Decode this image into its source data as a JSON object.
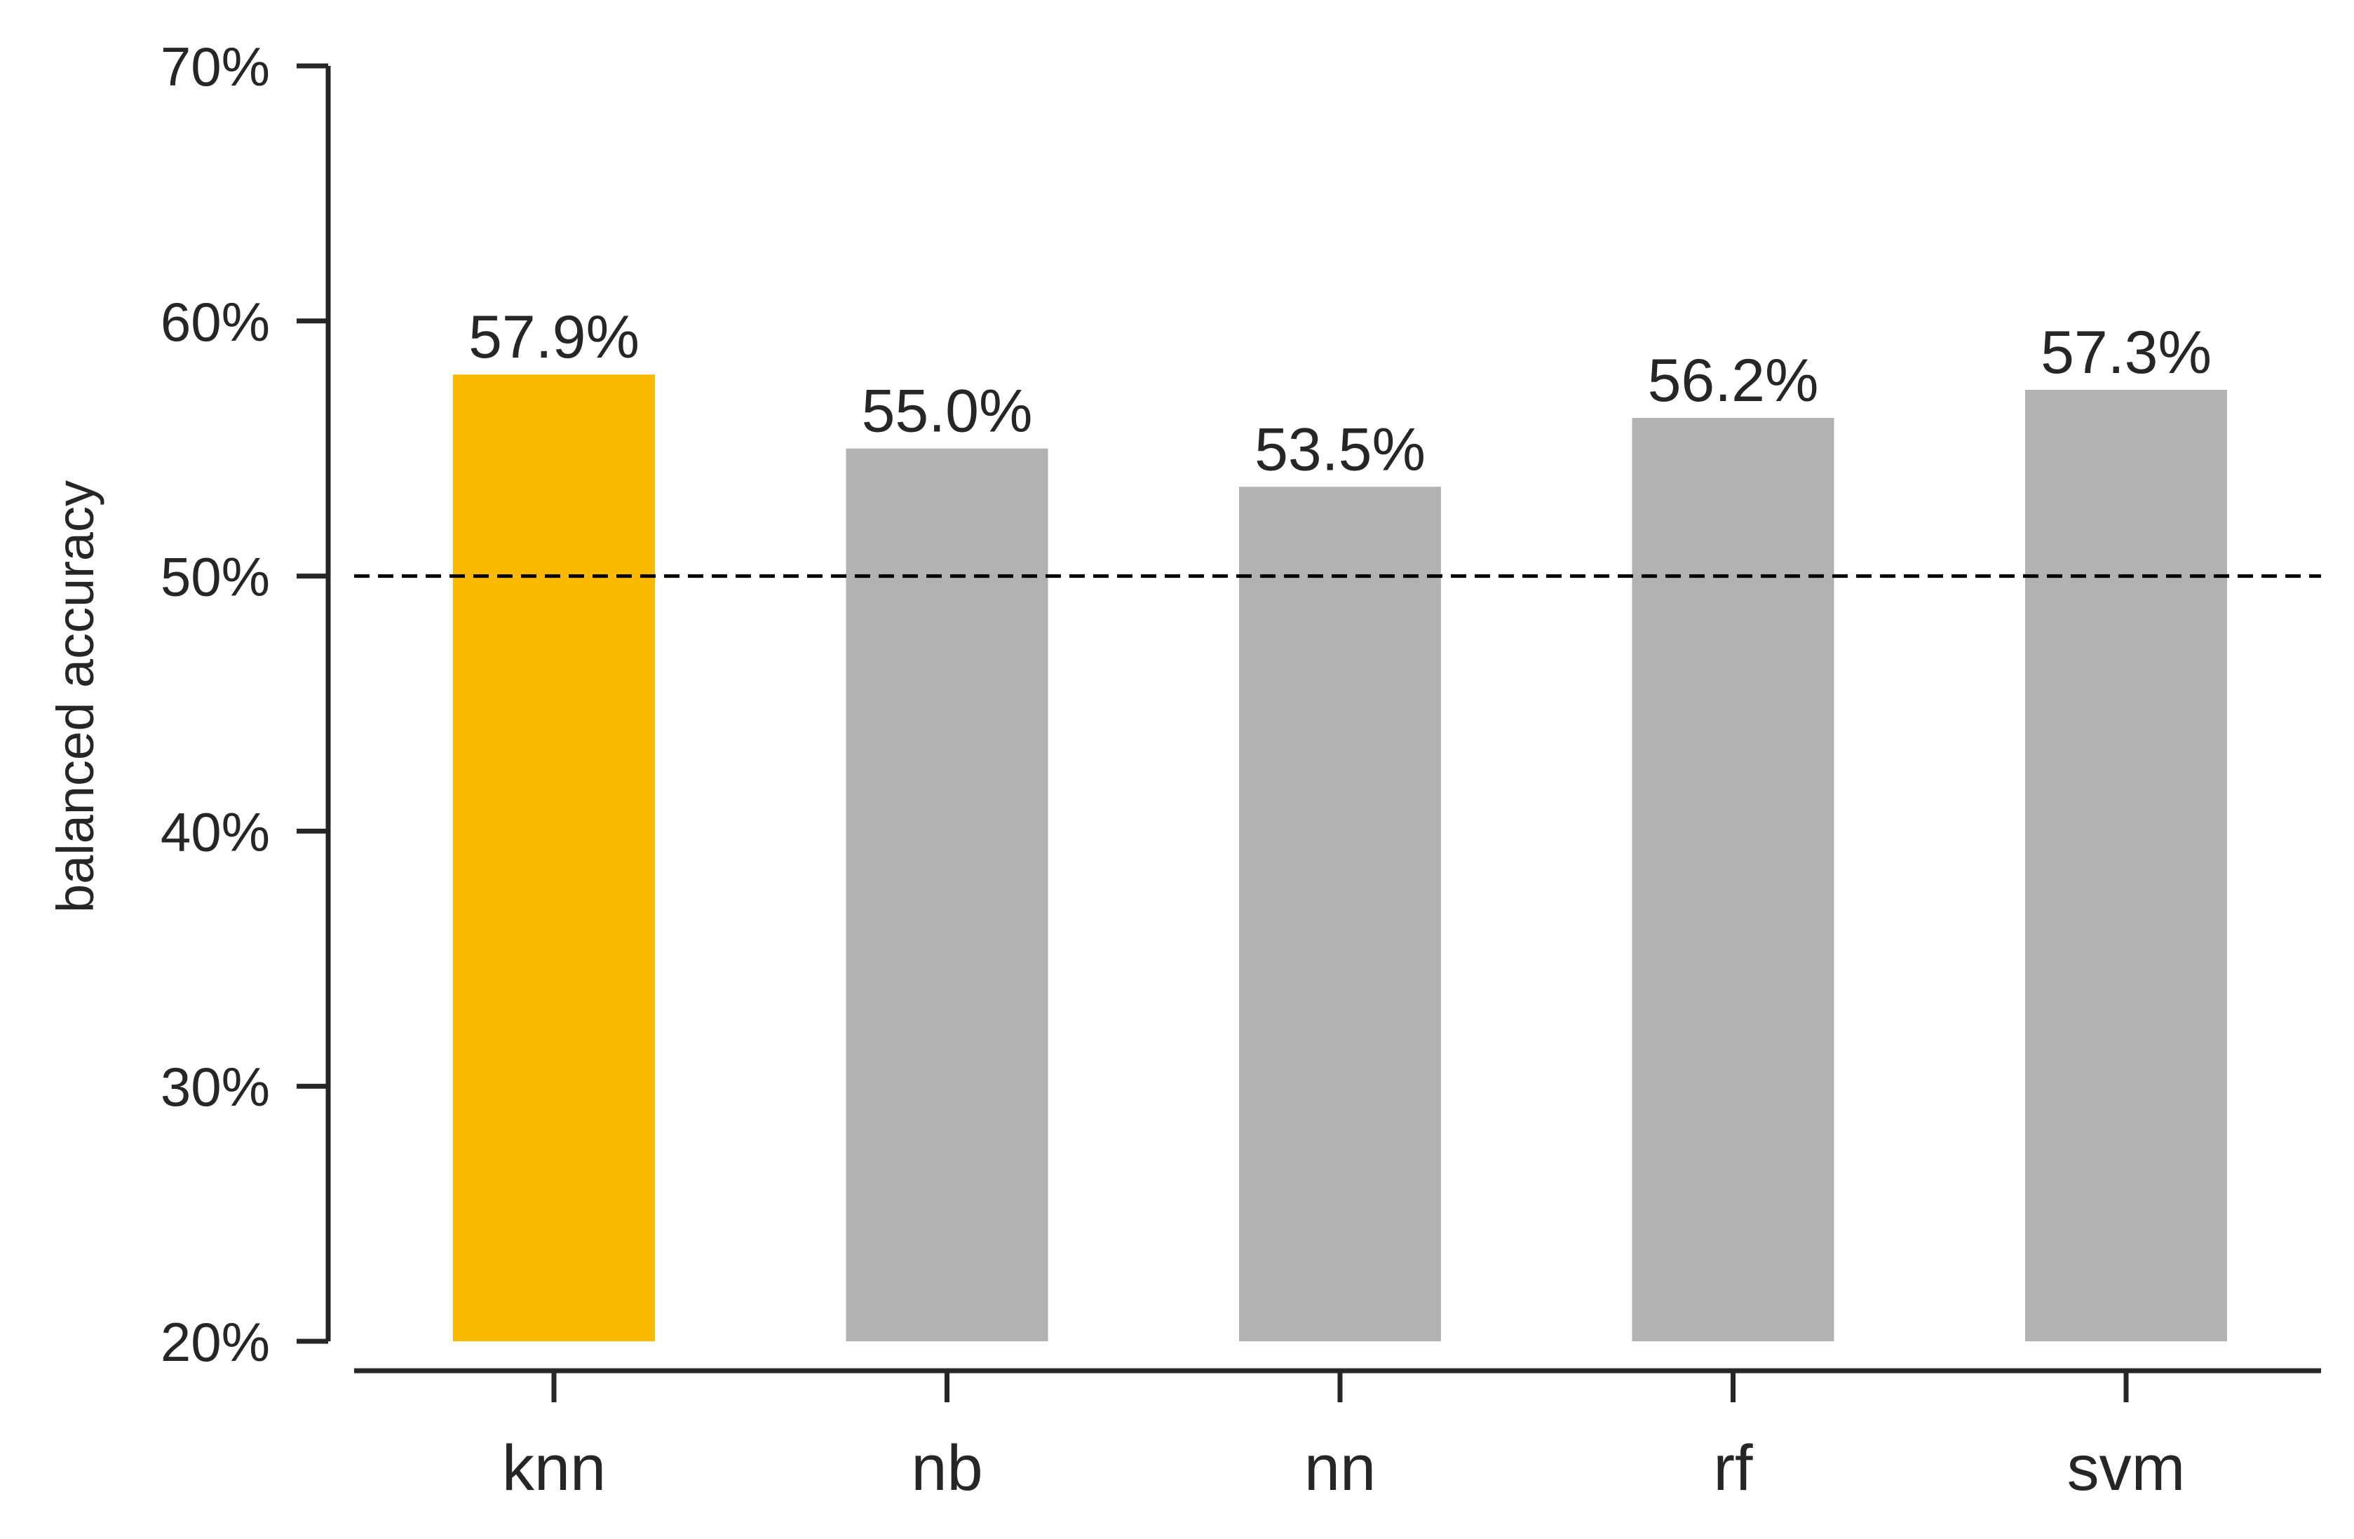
{
  "chart_data": {
    "type": "bar",
    "title": "",
    "xlabel": "",
    "ylabel": "balanced accuracy",
    "categories": [
      "knn",
      "nb",
      "nn",
      "rf",
      "svm"
    ],
    "values": [
      57.9,
      55.0,
      53.5,
      56.2,
      57.3
    ],
    "value_labels": [
      "57.9%",
      "55.0%",
      "53.5%",
      "56.2%",
      "57.3%"
    ],
    "ylim": [
      20,
      70
    ],
    "yticks": [
      20,
      30,
      40,
      50,
      60,
      70
    ],
    "ytick_labels": [
      "20%",
      "30%",
      "40%",
      "50%",
      "60%",
      "70%"
    ],
    "reference_line": {
      "value": 50,
      "style": "dashed",
      "color": "#000000"
    },
    "highlight_category": "knn",
    "colors": {
      "highlight": "#FBB900",
      "default": "#B2B2B2",
      "axis": "#262626"
    },
    "grid": false,
    "legend": "none"
  }
}
